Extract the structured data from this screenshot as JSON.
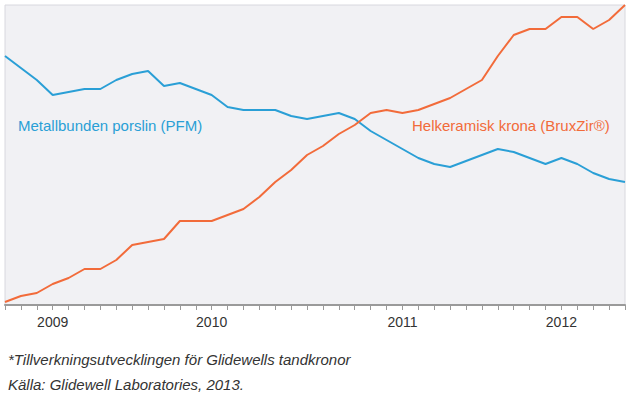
{
  "chart_data": {
    "type": "line",
    "categories": [
      null,
      null,
      null,
      "2009",
      null,
      null,
      null,
      null,
      null,
      null,
      null,
      null,
      null,
      "2010",
      null,
      null,
      null,
      null,
      null,
      null,
      null,
      null,
      null,
      null,
      null,
      "2011",
      null,
      null,
      null,
      null,
      null,
      null,
      null,
      null,
      null,
      "2012",
      null,
      null,
      null,
      null
    ],
    "series": [
      {
        "name": "Metallbunden porslin (PFM)",
        "color": "#2a9fd6",
        "values": [
          83,
          79,
          75,
          70,
          71,
          72,
          72,
          75,
          77,
          78,
          73,
          74,
          72,
          70,
          66,
          65,
          65,
          65,
          63,
          62,
          63,
          64,
          62,
          58,
          55,
          52,
          49,
          47,
          46,
          48,
          50,
          52,
          51,
          49,
          47,
          49,
          47,
          44,
          42,
          41
        ]
      },
      {
        "name": "Helkeramisk krona (BruxZir®)",
        "color": "#f26b3a",
        "values": [
          1,
          3,
          4,
          7,
          9,
          12,
          12,
          15,
          20,
          21,
          22,
          28,
          28,
          28,
          30,
          32,
          36,
          41,
          45,
          50,
          53,
          57,
          60,
          64,
          65,
          64,
          65,
          67,
          69,
          72,
          75,
          83,
          90,
          92,
          92,
          96,
          96,
          92,
          95,
          100
        ]
      }
    ],
    "ylim": [
      0,
      100
    ],
    "grid": false,
    "tick_labels": "x",
    "footnote": [
      "*Tillverkningsutvecklingen för Glidewells tandkronor",
      "Källa: Glidewell Laboratories, 2013."
    ]
  }
}
